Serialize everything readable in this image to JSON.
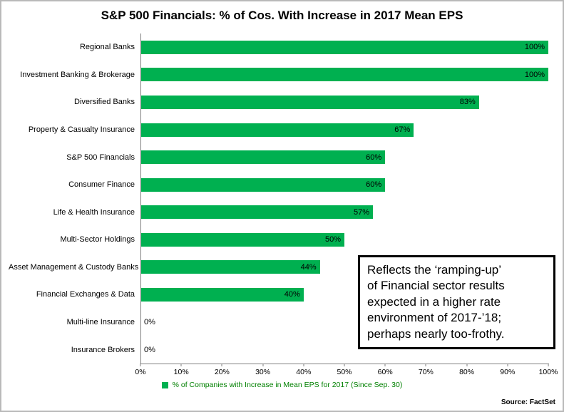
{
  "title": "S&P 500 Financials: % of Cos. With Increase in 2017 Mean EPS",
  "colors": {
    "bar": "#00B050",
    "legend_text": "#008000"
  },
  "chart_data": {
    "type": "bar",
    "orientation": "horizontal",
    "categories": [
      "Regional Banks",
      "Investment Banking & Brokerage",
      "Diversified Banks",
      "Property & Casualty Insurance",
      "S&P 500 Financials",
      "Consumer Finance",
      "Life & Health Insurance",
      "Multi-Sector Holdings",
      "Asset Management & Custody Banks",
      "Financial Exchanges & Data",
      "Multi-line Insurance",
      "Insurance Brokers"
    ],
    "values": [
      100,
      100,
      83,
      67,
      60,
      60,
      57,
      50,
      44,
      40,
      0,
      0
    ],
    "value_labels": [
      "100%",
      "100%",
      "83%",
      "67%",
      "60%",
      "60%",
      "57%",
      "50%",
      "44%",
      "40%",
      "0%",
      "0%"
    ],
    "xlim": [
      0,
      100
    ],
    "x_ticks": [
      "0%",
      "10%",
      "20%",
      "30%",
      "40%",
      "50%",
      "60%",
      "70%",
      "80%",
      "90%",
      "100%"
    ],
    "grid": false,
    "legend": "% of Companies with Increase in Mean EPS for 2017 (Since Sep. 30)",
    "legend_position": "bottom"
  },
  "annotation": {
    "text": "Reflects the ‘ramping-up’\nof Financial sector results\nexpected in a higher rate\nenvironment of 2017-’18;\nperhaps nearly too-frothy."
  },
  "source": "Source: FactSet"
}
